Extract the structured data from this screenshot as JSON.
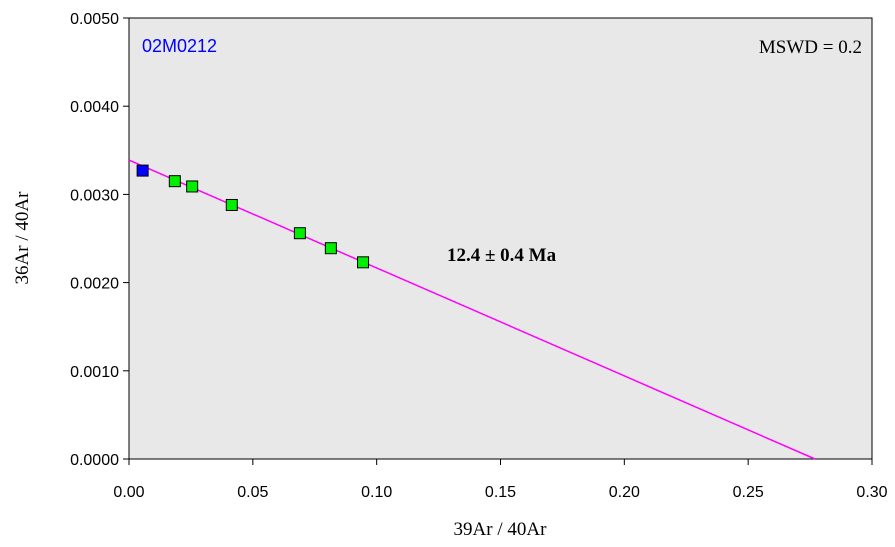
{
  "chart_data": {
    "type": "scatter",
    "title": "",
    "xlabel": "39Ar / 40Ar",
    "ylabel": "36Ar / 40Ar",
    "xlim": [
      0,
      0.3
    ],
    "ylim": [
      0,
      0.005
    ],
    "x_ticks": [
      "0.00",
      "0.05",
      "0.10",
      "0.15",
      "0.20",
      "0.25",
      "0.30"
    ],
    "y_ticks": [
      "0.0000",
      "0.0010",
      "0.0020",
      "0.0030",
      "0.0040",
      "0.0050"
    ],
    "grid": false,
    "plot_background": "#e8e8e8",
    "annotations": {
      "sample": "02M0212",
      "mswd": "MSWD = 0.2",
      "age": "12.4 ± 0.4 Ma"
    },
    "series": [
      {
        "color": "#0000ff",
        "marker": "square",
        "points": [
          [
            0.0055,
            0.00327
          ]
        ]
      },
      {
        "color": "#00ee00",
        "marker": "square",
        "points": [
          [
            0.0185,
            0.00315
          ],
          [
            0.0255,
            0.00309
          ],
          [
            0.0415,
            0.00288
          ],
          [
            0.069,
            0.00256
          ],
          [
            0.0815,
            0.00239
          ],
          [
            0.0945,
            0.00223
          ]
        ]
      }
    ],
    "regression_line": {
      "color": "#ff00ff",
      "points": [
        [
          0.0,
          0.00339
        ],
        [
          0.277,
          0.0
        ]
      ]
    }
  }
}
